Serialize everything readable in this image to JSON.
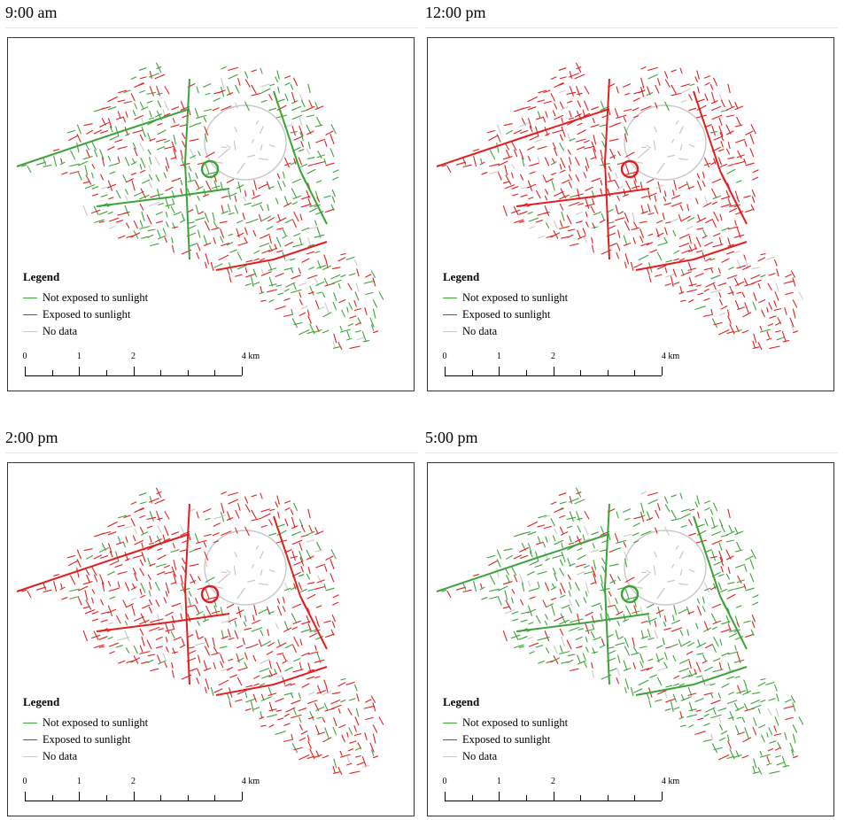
{
  "colors": {
    "not_exposed": "#3ea23a",
    "exposed": "#e02020",
    "no_data": "#c8c8c8"
  },
  "panels": [
    {
      "time": "9:00 am",
      "green_share": 0.58
    },
    {
      "time": "12:00 pm",
      "green_share": 0.12
    },
    {
      "time": "2:00 pm",
      "green_share": 0.22
    },
    {
      "time": "5:00 pm",
      "green_share": 0.75
    }
  ],
  "legend": {
    "title": "Legend",
    "items": [
      {
        "label": "Not exposed to sunlight",
        "color_key": "not_exposed"
      },
      {
        "label": "Exposed to sunlight",
        "color_key": "exposed"
      },
      {
        "label": "No data",
        "color_key": "no_data"
      }
    ]
  },
  "scale": {
    "labels": [
      "0",
      "1",
      "2",
      "4 km"
    ],
    "label_values_km": [
      0,
      1,
      2,
      4
    ]
  }
}
